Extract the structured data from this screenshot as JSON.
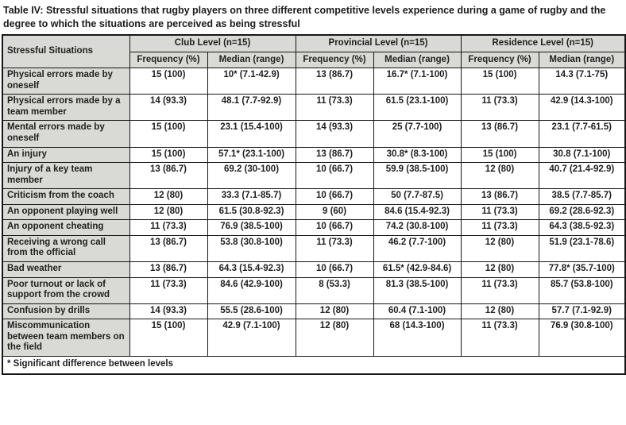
{
  "title": {
    "label": "Table IV:",
    "text": "Stressful situations that rugby players on three different competitive levels experience during a game of rugby and the degree to which the situations are perceived as being stressful"
  },
  "table": {
    "corner_header": "Stressful Situations",
    "group_headers": [
      "Club Level (n=15)",
      "Provincial Level (n=15)",
      "Residence Level (n=15)"
    ],
    "sub_headers": [
      "Frequency (%)",
      "Median (range)"
    ],
    "rows": [
      {
        "situation": "Physical errors made by oneself",
        "cells": [
          "15 (100)",
          "10* (7.1-42.9)",
          "13 (86.7)",
          "16.7* (7.1-100)",
          "15 (100)",
          "14.3 (7.1-75)"
        ]
      },
      {
        "situation": "Physical errors made by a team member",
        "cells": [
          "14 (93.3)",
          "48.1 (7.7-92.9)",
          "11 (73.3)",
          "61.5 (23.1-100)",
          "11 (73.3)",
          "42.9 (14.3-100)"
        ]
      },
      {
        "situation": "Mental errors made by oneself",
        "cells": [
          "15 (100)",
          "23.1 (15.4-100)",
          "14 (93.3)",
          "25 (7.7-100)",
          "13 (86.7)",
          "23.1 (7.7-61.5)"
        ]
      },
      {
        "situation": "An injury",
        "cells": [
          "15 (100)",
          "57.1* (23.1-100)",
          "13 (86.7)",
          "30.8* (8.3-100)",
          "15 (100)",
          "30.8 (7.1-100)"
        ]
      },
      {
        "situation": "Injury of a key team member",
        "cells": [
          "13 (86.7)",
          "69.2 (30-100)",
          "10 (66.7)",
          "59.9 (38.5-100)",
          "12 (80)",
          "40.7 (21.4-92.9)"
        ]
      },
      {
        "situation": "Criticism from the coach",
        "cells": [
          "12 (80)",
          "33.3 (7.1-85.7)",
          "10 (66.7)",
          "50 (7.7-87.5)",
          "13 (86.7)",
          "38.5 (7.7-85.7)"
        ]
      },
      {
        "situation": "An opponent playing well",
        "cells": [
          "12 (80)",
          "61.5 (30.8-92.3)",
          "9 (60)",
          "84.6 (15.4-92.3)",
          "11 (73.3)",
          "69.2 (28.6-92.3)"
        ]
      },
      {
        "situation": "An opponent cheating",
        "cells": [
          "11 (73.3)",
          "76.9 (38.5-100)",
          "10 (66.7)",
          "74.2 (30.8-100)",
          "11 (73.3)",
          "64.3 (38.5-92.3)"
        ]
      },
      {
        "situation": "Receiving a wrong call from the official",
        "cells": [
          "13 (86.7)",
          "53.8 (30.8-100)",
          "11 (73.3)",
          "46.2 (7.7-100)",
          "12 (80)",
          "51.9 (23.1-78.6)"
        ]
      },
      {
        "situation": "Bad weather",
        "cells": [
          "13 (86.7)",
          "64.3 (15.4-92.3)",
          "10 (66.7)",
          "61.5* (42.9-84.6)",
          "12 (80)",
          "77.8* (35.7-100)"
        ]
      },
      {
        "situation": "Poor turnout or lack of support from the crowd",
        "cells": [
          "11 (73.3)",
          "84.6 (42.9-100)",
          "8 (53.3)",
          "81.3 (38.5-100)",
          "11 (73.3)",
          "85.7 (53.8-100)"
        ]
      },
      {
        "situation": "Confusion by drills",
        "cells": [
          "14 (93.3)",
          "55.5 (28.6-100)",
          "12 (80)",
          "60.4 (7.1-100)",
          "12 (80)",
          "57.7 (7.1-92.9)"
        ]
      },
      {
        "situation": "Miscommunication between team members on the field",
        "cells": [
          "15 (100)",
          "42.9 (7.1-100)",
          "12 (80)",
          "68 (14.3-100)",
          "11 (73.3)",
          "76.9 (30.8-100)"
        ]
      }
    ],
    "footnote": "* Significant difference between levels"
  },
  "colors": {
    "header_bg": "#d9d9d5",
    "body_bg": "#ffffff",
    "border": "#161616",
    "text": "#1f1f1f"
  }
}
